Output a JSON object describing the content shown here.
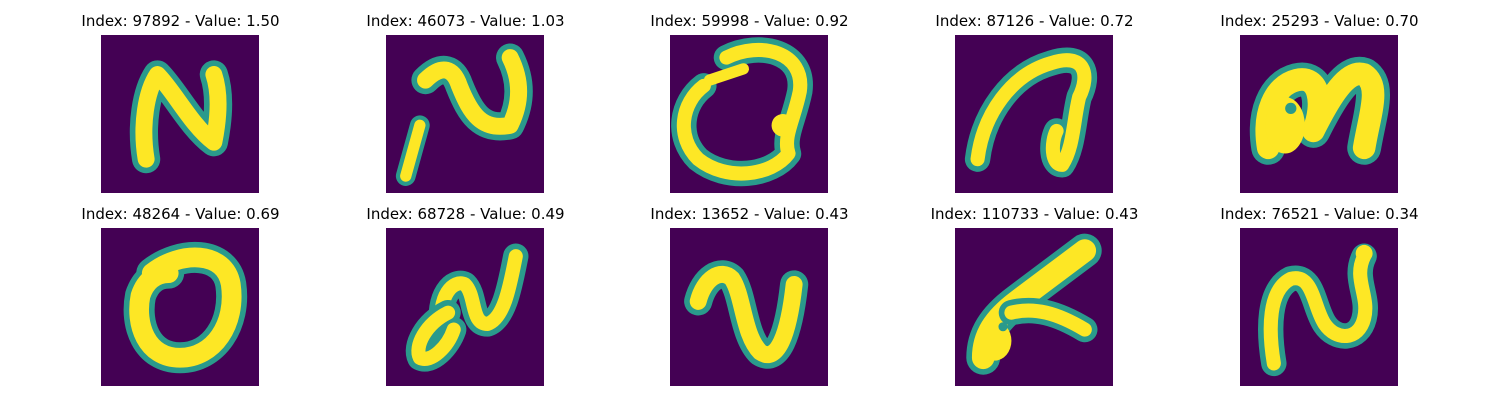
{
  "colors": {
    "background": "#440154",
    "edge": "#2a9a8c",
    "stroke": "#fde725"
  },
  "panels": [
    {
      "title": "Index: 97892 - Value: 1.50",
      "index": 97892,
      "value": 1.5,
      "glyph": "N-shaped digit"
    },
    {
      "title": "Index: 46073 - Value: 1.03",
      "index": 46073,
      "value": 1.03,
      "glyph": "N-shaped digit, slanted"
    },
    {
      "title": "Index: 59998 - Value: 0.92",
      "index": 59998,
      "value": 0.92,
      "glyph": "loop shaped digit"
    },
    {
      "title": "Index: 87126 - Value: 0.72",
      "index": 87126,
      "value": 0.72,
      "glyph": "open loop digit"
    },
    {
      "title": "Index: 25293 - Value: 0.70",
      "index": 25293,
      "value": 0.7,
      "glyph": "thick curved digit"
    },
    {
      "title": "Index: 48264 - Value: 0.69",
      "index": 48264,
      "value": 0.69,
      "glyph": "zero-like loop"
    },
    {
      "title": "Index: 68728 - Value: 0.49",
      "index": 68728,
      "value": 0.49,
      "glyph": "wavy digit"
    },
    {
      "title": "Index: 13652 - Value: 0.43",
      "index": 13652,
      "value": 0.43,
      "glyph": "wave digit"
    },
    {
      "title": "Index: 110733 - Value: 0.43",
      "index": 110733,
      "value": 0.43,
      "glyph": "angled stroke digit"
    },
    {
      "title": "Index: 76521 - Value: 0.34",
      "index": 76521,
      "value": 0.34,
      "glyph": "S-curve digit"
    }
  ]
}
